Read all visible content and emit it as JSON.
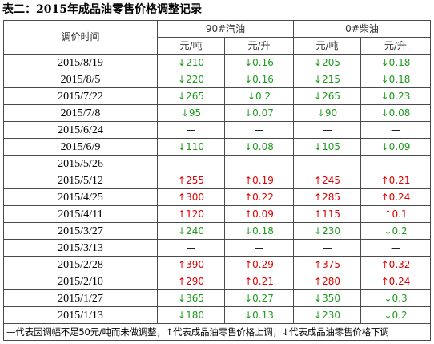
{
  "title": "表二：2015年成品油零售价格调整记录",
  "header": {
    "date_col": "调价时间",
    "gasoline": "90#汽油",
    "diesel": "0#柴油",
    "unit_ton": "元/吨",
    "unit_liter": "元/升"
  },
  "rows": [
    {
      "date": "2015/8/19",
      "g_ton": "↓210",
      "g_liter": "↓0.16",
      "d_ton": "↓205",
      "d_liter": "↓0.18",
      "dir": "down"
    },
    {
      "date": "2015/8/5",
      "g_ton": "↓220",
      "g_liter": "↓0.16",
      "d_ton": "↓215",
      "d_liter": "↓0.18",
      "dir": "down"
    },
    {
      "date": "2015/7/22",
      "g_ton": "↓265",
      "g_liter": "↓0.2",
      "d_ton": "↓265",
      "d_liter": "↓0.23",
      "dir": "down"
    },
    {
      "date": "2015/7/8",
      "g_ton": "↓95",
      "g_liter": "↓0.07",
      "d_ton": "↓90",
      "d_liter": "↓0.08",
      "dir": "down"
    },
    {
      "date": "2015/6/24",
      "g_ton": "—",
      "g_liter": "—",
      "d_ton": "—",
      "d_liter": "—",
      "dir": "none"
    },
    {
      "date": "2015/6/9",
      "g_ton": "↓110",
      "g_liter": "↓0.08",
      "d_ton": "↓105",
      "d_liter": "↓0.09",
      "dir": "down"
    },
    {
      "date": "2015/5/26",
      "g_ton": "—",
      "g_liter": "—",
      "d_ton": "—",
      "d_liter": "—",
      "dir": "none"
    },
    {
      "date": "2015/5/12",
      "g_ton": "↑255",
      "g_liter": "↑0.19",
      "d_ton": "↑245",
      "d_liter": "↑0.21",
      "dir": "up"
    },
    {
      "date": "2015/4/25",
      "g_ton": "↑300",
      "g_liter": "↑0.22",
      "d_ton": "↑285",
      "d_liter": "↑0.24",
      "dir": "up"
    },
    {
      "date": "2015/4/11",
      "g_ton": "↑120",
      "g_liter": "↑0.09",
      "d_ton": "↑115",
      "d_liter": "↑0.1",
      "dir": "up"
    },
    {
      "date": "2015/3/27",
      "g_ton": "↓240",
      "g_liter": "↓0.18",
      "d_ton": "↓230",
      "d_liter": "↓0.2",
      "dir": "down"
    },
    {
      "date": "2015/3/13",
      "g_ton": "—",
      "g_liter": "—",
      "d_ton": "—",
      "d_liter": "—",
      "dir": "none"
    },
    {
      "date": "2015/2/28",
      "g_ton": "↑390",
      "g_liter": "↑0.29",
      "d_ton": "↑375",
      "d_liter": "↑0.32",
      "dir": "up"
    },
    {
      "date": "2015/2/10",
      "g_ton": "↑290",
      "g_liter": "↑0.21",
      "d_ton": "↑280",
      "d_liter": "↑0.24",
      "dir": "up"
    },
    {
      "date": "2015/1/27",
      "g_ton": "↓365",
      "g_liter": "↓0.27",
      "d_ton": "↓350",
      "d_liter": "↓0.3",
      "dir": "down"
    },
    {
      "date": "2015/1/13",
      "g_ton": "↓180",
      "g_liter": "↓0.13",
      "d_ton": "↓230",
      "d_liter": "↓0.2",
      "dir": "down"
    }
  ],
  "footnote": "—代表因调幅不足50元/吨而未做调整，↑代表成品油零售价格上调，↓代表成品油零售价格下调",
  "colors": {
    "up": "#e00000",
    "down": "#1e9a1e",
    "border": "#4a4a4a"
  }
}
